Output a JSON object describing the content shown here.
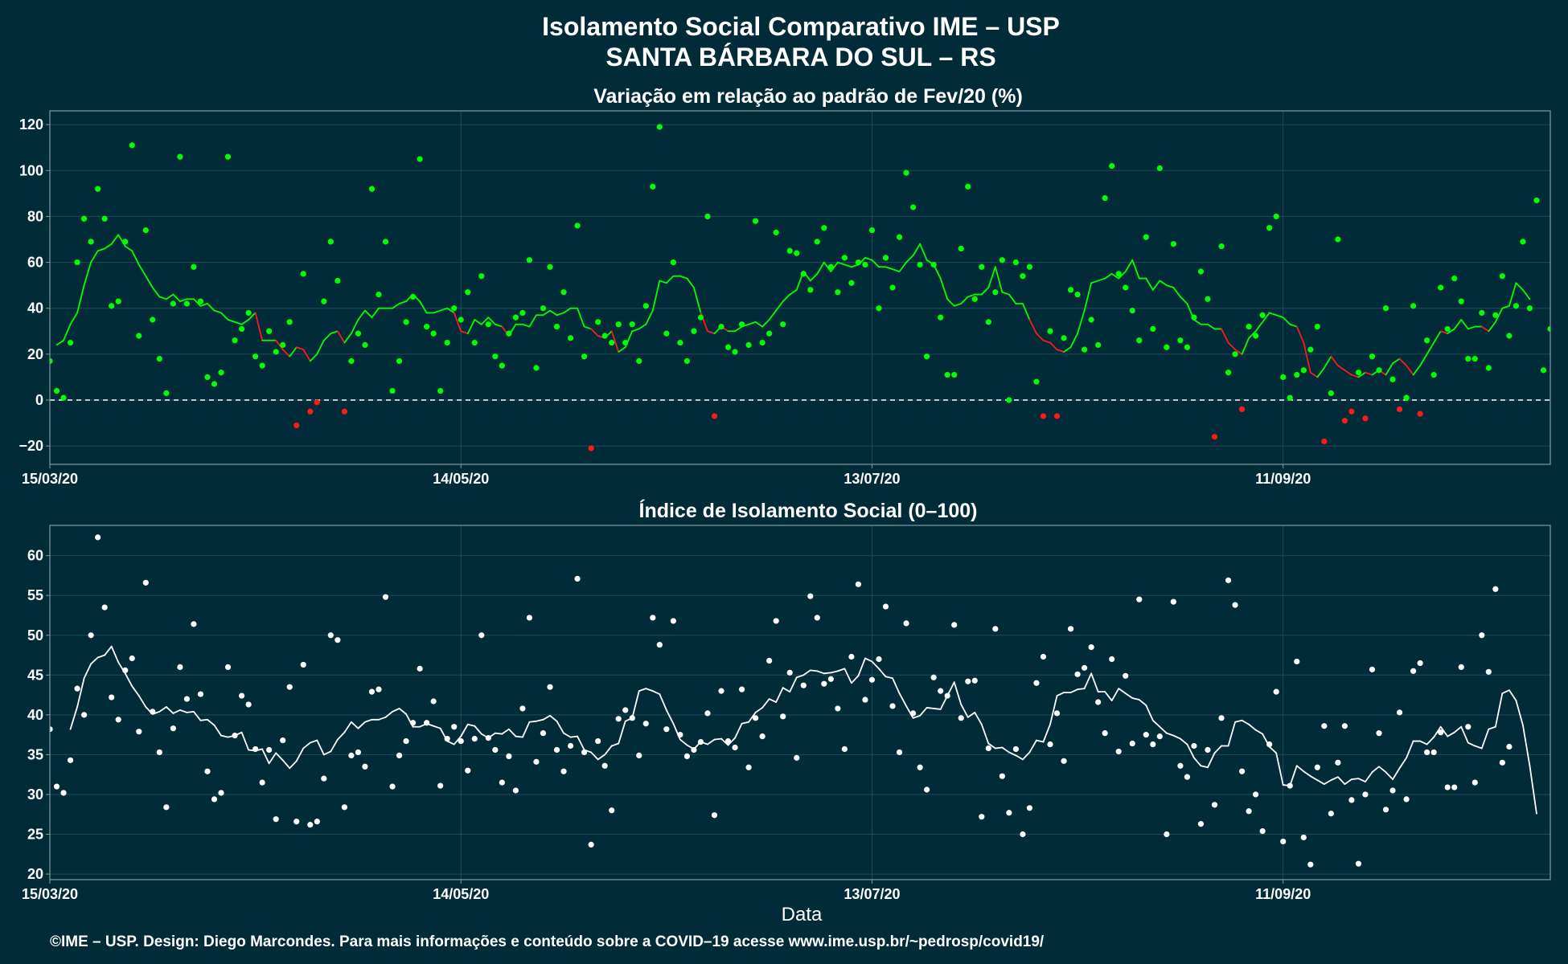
{
  "header": {
    "title": "Isolamento Social Comparativo IME – USP",
    "subtitle": "SANTA BÁRBARA DO SUL – RS"
  },
  "footer": {
    "credit": "©IME – USP. Design: Diego Marcondes. Para mais informações e conteúdo sobre a COVID–19 acesse www.ime.usp.br/~pedrosp/covid19/"
  },
  "colors": {
    "background": "#022b3a",
    "panel_border": "#7f99a3",
    "grid": "#214b59",
    "text": "#ffffff",
    "positive": "#00ff00",
    "negative": "#ff1a1a",
    "index_series": "#ffffff",
    "reference_line": "#ffffff"
  },
  "chart_data": [
    {
      "type": "scatter",
      "title": "Variação em relação ao padrão de Fev/20 (%)",
      "xlabel": "",
      "ylabel": "",
      "x_type": "date",
      "xlim": [
        "2020-03-15",
        "2020-10-20"
      ],
      "ylim": [
        -28,
        126
      ],
      "x_ticks": [
        "2020-03-15",
        "2020-05-14",
        "2020-07-13",
        "2020-09-11"
      ],
      "x_tick_labels": [
        "15/03/20",
        "14/05/20",
        "13/07/20",
        "11/09/20"
      ],
      "y_ticks": [
        -20,
        0,
        20,
        40,
        60,
        80,
        100,
        120
      ],
      "reference_line": 0,
      "grid": true,
      "color_rule": "green when value >= 0, red when value < 0",
      "series": [
        {
          "kind": "daily_points",
          "start": "2020-03-15",
          "values": [
            17,
            4,
            1,
            25,
            60,
            79,
            69,
            92,
            79,
            41,
            43,
            69,
            111,
            28,
            74,
            35,
            18,
            3,
            42,
            106,
            42,
            58,
            43,
            10,
            7,
            12,
            106,
            26,
            31,
            38,
            19,
            15,
            30,
            21,
            24,
            34,
            -11,
            55,
            -5,
            -1,
            43,
            69,
            52,
            -5,
            17,
            29,
            24,
            92,
            46,
            69,
            4,
            17,
            34,
            45,
            105,
            32,
            29,
            4,
            25,
            40,
            35,
            47,
            25,
            54,
            33,
            19,
            15,
            29,
            36,
            38,
            61,
            14,
            40,
            58,
            32,
            47,
            27,
            76,
            19,
            -21,
            34,
            28,
            25,
            33,
            25,
            33,
            17,
            41,
            93,
            119,
            29,
            60,
            25,
            17,
            30,
            36,
            80,
            -7,
            32,
            23,
            21,
            33,
            24,
            78,
            25,
            29,
            73,
            33,
            65,
            64,
            55,
            48,
            69,
            75,
            58,
            47,
            62,
            51,
            60,
            59,
            74,
            40,
            62,
            49,
            71,
            99,
            84,
            59,
            19,
            59,
            36,
            11,
            11,
            66,
            93,
            44,
            58,
            34,
            47,
            61,
            0,
            60,
            54,
            58,
            8,
            -7,
            30,
            -7,
            27,
            48,
            46,
            22,
            35,
            24,
            88,
            102,
            55,
            49,
            39,
            26,
            71,
            31,
            101,
            23,
            68,
            26,
            23,
            36,
            56,
            44,
            -16,
            67,
            12,
            20,
            -4,
            32,
            28,
            37,
            75,
            80,
            10,
            1,
            11,
            13,
            22,
            32,
            -18,
            3,
            70,
            -9,
            -5,
            12,
            -8,
            19,
            13,
            40,
            9,
            -4,
            1,
            41,
            -6,
            26,
            11,
            49,
            31,
            53,
            43,
            18,
            18,
            38,
            14,
            37,
            54,
            28,
            41,
            69,
            40,
            87,
            13,
            31
          ]
        },
        {
          "kind": "moving_average_line",
          "start": "2020-03-16",
          "values": [
            24,
            26,
            33,
            38,
            50,
            60,
            65,
            66,
            68,
            72,
            67,
            65,
            59,
            54,
            49,
            45,
            44,
            46,
            43,
            44,
            44,
            41,
            42,
            39,
            38,
            35,
            34,
            33,
            35,
            38,
            26,
            26,
            26,
            22,
            19,
            23,
            22,
            17,
            20,
            26,
            29,
            30,
            25,
            29,
            35,
            39,
            36,
            40,
            40,
            40,
            42,
            43,
            46,
            43,
            38,
            38,
            39,
            40,
            38,
            30,
            29,
            35,
            33,
            36,
            33,
            32,
            28,
            33,
            33,
            32,
            37,
            37,
            39,
            37,
            38,
            40,
            40,
            32,
            31,
            28,
            27,
            30,
            21,
            23,
            30,
            31,
            33,
            39,
            52,
            51,
            54,
            54,
            53,
            49,
            38,
            30,
            29,
            32,
            30,
            30,
            32,
            33,
            34,
            32,
            35,
            39,
            43,
            46,
            48,
            56,
            52,
            55,
            60,
            56,
            60,
            59,
            58,
            59,
            62,
            61,
            58,
            58,
            57,
            56,
            60,
            63,
            68,
            61,
            59,
            53,
            44,
            41,
            42,
            45,
            46,
            46,
            49,
            58,
            47,
            46,
            42,
            42,
            35,
            29,
            26,
            25,
            22,
            21,
            23,
            29,
            39,
            51,
            52,
            53,
            55,
            53,
            56,
            61,
            53,
            53,
            48,
            52,
            50,
            49,
            45,
            42,
            35,
            33,
            33,
            31,
            31,
            25,
            22,
            20,
            27,
            30,
            34,
            38,
            37,
            36,
            33,
            32,
            25,
            12,
            10,
            14,
            19,
            15,
            13,
            11,
            10,
            12,
            11,
            13,
            11,
            16,
            18,
            15,
            11,
            15,
            20,
            25,
            30,
            29,
            31,
            35,
            31,
            32,
            32,
            30,
            34,
            40,
            41,
            51,
            48,
            44
          ]
        }
      ]
    },
    {
      "type": "scatter",
      "title": "Índice de Isolamento Social (0–100)",
      "xlabel": "Data",
      "ylabel": "",
      "x_type": "date",
      "xlim": [
        "2020-03-15",
        "2020-10-20"
      ],
      "ylim": [
        19.3,
        63.8
      ],
      "x_ticks": [
        "2020-03-15",
        "2020-05-14",
        "2020-07-13",
        "2020-09-11"
      ],
      "x_tick_labels": [
        "15/03/20",
        "14/05/20",
        "13/07/20",
        "11/09/20"
      ],
      "y_ticks": [
        20,
        25,
        30,
        35,
        40,
        45,
        50,
        55,
        60
      ],
      "grid": true,
      "series": [
        {
          "kind": "daily_points",
          "start": "2020-03-15",
          "values": [
            38.2,
            31.0,
            30.2,
            34.3,
            43.3,
            40.0,
            50.0,
            62.3,
            53.5,
            42.2,
            39.4,
            45.6,
            47.1,
            37.9,
            56.6,
            40.4,
            35.3,
            28.4,
            38.3,
            46.0,
            42.0,
            51.4,
            42.6,
            32.9,
            29.4,
            30.2,
            46.0,
            37.4,
            42.4,
            41.3,
            35.7,
            31.5,
            35.6,
            26.9,
            36.8,
            43.5,
            26.6,
            46.3,
            26.2,
            26.6,
            32.0,
            50.0,
            49.4,
            28.4,
            34.9,
            35.3,
            33.5,
            42.9,
            43.2,
            54.8,
            31.0,
            34.9,
            36.7,
            39.0,
            45.8,
            39.0,
            41.7,
            31.1,
            37.0,
            38.5,
            36.7,
            33.0,
            37.0,
            50.0,
            37.1,
            35.6,
            31.5,
            34.8,
            30.5,
            40.8,
            52.2,
            34.1,
            37.7,
            43.5,
            35.6,
            32.9,
            36.1,
            57.1,
            35.3,
            23.7,
            36.7,
            33.6,
            28.0,
            39.5,
            40.6,
            39.6,
            34.9,
            38.9,
            52.2,
            48.8,
            38.2,
            51.8,
            37.5,
            34.8,
            35.6,
            36.6,
            40.2,
            27.4,
            43.0,
            36.7,
            35.9,
            43.2,
            33.4,
            39.6,
            37.3,
            46.8,
            51.8,
            39.8,
            45.3,
            34.6,
            43.7,
            54.9,
            52.2,
            43.9,
            44.5,
            40.8,
            35.7,
            47.3,
            56.4,
            41.9,
            44.4,
            47.0,
            53.6,
            41.1,
            35.3,
            51.5,
            40.2,
            33.4,
            30.6,
            44.7,
            43.0,
            42.4,
            51.3,
            39.6,
            44.2,
            44.3,
            27.2,
            35.8,
            50.8,
            32.3,
            27.7,
            35.7,
            25.0,
            28.3,
            44.0,
            47.3,
            36.3,
            40.2,
            34.2,
            50.8,
            45.1,
            45.9,
            48.5,
            41.6,
            37.7,
            47.0,
            35.4,
            44.9,
            36.4,
            54.5,
            37.5,
            36.3,
            37.3,
            25.0,
            54.2,
            33.6,
            32.2,
            36.1,
            26.3,
            35.6,
            28.7,
            39.6,
            56.9,
            53.8,
            32.9,
            27.9,
            30.0,
            25.4,
            36.3,
            42.9,
            24.1,
            31.1,
            46.7,
            24.6,
            21.2,
            33.4,
            38.6,
            27.6,
            34.0,
            38.6,
            29.3,
            21.3,
            30.0,
            45.7,
            37.7,
            28.1,
            30.5,
            40.3,
            29.4,
            45.5,
            46.5,
            35.3,
            35.3,
            37.8,
            30.9,
            30.9,
            46.0,
            38.5,
            31.5,
            50.0,
            45.4,
            55.8,
            34.0,
            36.0
          ]
        },
        {
          "kind": "moving_average_line",
          "start": "2020-03-18",
          "values": [
            38.2,
            41.0,
            44.6,
            46.4,
            47.2,
            47.5,
            48.6,
            46.6,
            45.2,
            43.6,
            42.4,
            41.0,
            40.1,
            40.4,
            41.0,
            40.2,
            40.6,
            40.3,
            40.4,
            39.3,
            39.4,
            38.7,
            37.4,
            37.2,
            37.4,
            37.8,
            35.6,
            35.5,
            35.7,
            33.9,
            35.2,
            34.3,
            33.3,
            34.2,
            35.8,
            36.5,
            36.8,
            35.0,
            35.4,
            36.9,
            37.8,
            39.1,
            38.3,
            39.1,
            39.4,
            39.4,
            39.7,
            40.4,
            40.8,
            40.1,
            38.5,
            38.5,
            38.9,
            38.6,
            38.3,
            36.7,
            36.3,
            37.3,
            38.8,
            38.6,
            37.6,
            37.1,
            37.7,
            37.6,
            38.2,
            37.3,
            37.2,
            39.1,
            39.2,
            39.4,
            39.9,
            39.2,
            37.7,
            37.2,
            37.3,
            35.6,
            35.3,
            34.4,
            35.0,
            36.1,
            36.4,
            39.2,
            39.6,
            43.0,
            43.3,
            43.0,
            42.6,
            40.6,
            38.9,
            36.9,
            36.2,
            35.7,
            36.6,
            36.3,
            36.9,
            37.0,
            36.2,
            37.1,
            38.9,
            39.1,
            40.3,
            40.9,
            42.0,
            41.6,
            43.4,
            42.9,
            44.7,
            45.0,
            45.6,
            45.5,
            45.2,
            45.3,
            45.5,
            45.8,
            44.0,
            44.9,
            47.1,
            46.7,
            45.8,
            44.8,
            44.6,
            42.7,
            41.1,
            39.6,
            39.9,
            40.9,
            40.8,
            40.7,
            42.4,
            44.1,
            41.3,
            39.7,
            40.3,
            38.8,
            36.4,
            35.8,
            35.9,
            35.3,
            34.9,
            34.4,
            35.3,
            36.8,
            36.6,
            38.8,
            42.4,
            42.8,
            42.8,
            43.2,
            43.3,
            45.2,
            42.9,
            42.9,
            41.8,
            43.3,
            42.7,
            42.1,
            41.9,
            41.2,
            39.3,
            38.5,
            37.7,
            37.4,
            37.0,
            36.3,
            34.6,
            33.6,
            33.4,
            35.2,
            36.1,
            36.1,
            39.1,
            39.3,
            38.8,
            38.1,
            37.6,
            36.0,
            35.2,
            31.2,
            31.1,
            33.6,
            32.9,
            32.3,
            31.8,
            31.3,
            31.8,
            32.2,
            31.3,
            31.9,
            32.0,
            31.6,
            32.8,
            33.5,
            32.8,
            31.9,
            33.3,
            34.6,
            36.7,
            36.7,
            36.3,
            37.2,
            38.5,
            37.3,
            37.8,
            38.5,
            36.5,
            36.1,
            35.8,
            38.2,
            38.5,
            42.7,
            43.1,
            41.8,
            38.7,
            33.6,
            27.6
          ]
        }
      ]
    }
  ]
}
